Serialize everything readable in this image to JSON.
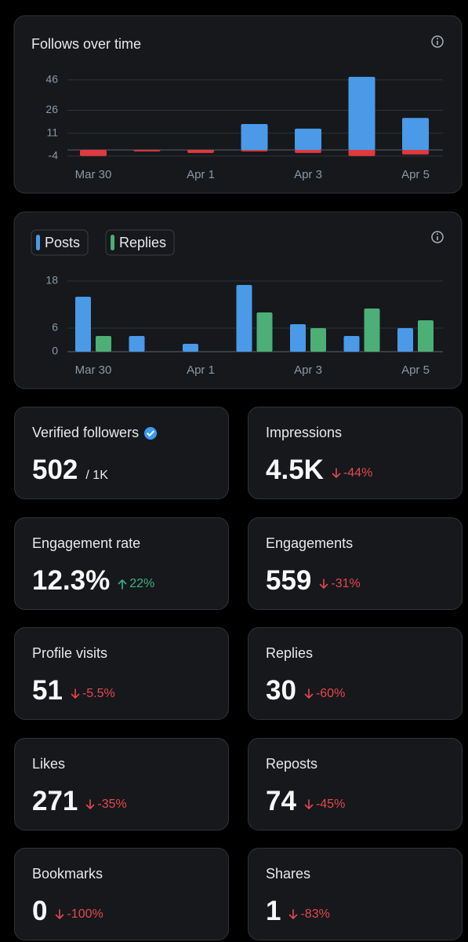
{
  "chart_data": [
    {
      "type": "bar",
      "title": "Follows over time",
      "categories": [
        "Mar 30",
        null,
        "Apr 1",
        null,
        "Apr 3",
        null,
        "Apr 5"
      ],
      "series": [
        {
          "color": "#4a9ae8",
          "values": [
            0,
            0,
            0,
            17,
            14,
            48,
            21
          ]
        },
        {
          "color": "#e0393e",
          "values": [
            -4,
            -1,
            -2,
            -1,
            -2,
            -4,
            -3
          ]
        }
      ],
      "ylim": [
        -6,
        50
      ],
      "yticks": [
        -4,
        11,
        26,
        46
      ],
      "grid": true,
      "layout": "overlap"
    },
    {
      "type": "bar",
      "categories": [
        "Mar 30",
        null,
        "Apr 1",
        null,
        "Apr 3",
        null,
        "Apr 5"
      ],
      "series": [
        {
          "name": "Posts",
          "color": "#4a9ae8",
          "values": [
            14,
            4,
            2,
            17,
            7,
            4,
            6
          ]
        },
        {
          "name": "Replies",
          "color": "#4caf75",
          "values": [
            4,
            0,
            0,
            10,
            6,
            11,
            8
          ]
        }
      ],
      "ylim": [
        0,
        18
      ],
      "yticks": [
        0,
        6,
        18
      ],
      "grid": true,
      "layout": "grouped",
      "legend": "top-left"
    }
  ],
  "stats": [
    {
      "label": "Verified followers",
      "value": "502",
      "suffix": "/ 1K",
      "verified": true
    },
    {
      "label": "Impressions",
      "value": "4.5K",
      "change": "-44%"
    },
    {
      "label": "Engagement rate",
      "value": "12.3%",
      "change": "22%"
    },
    {
      "label": "Engagements",
      "value": "559",
      "change": "-31%"
    },
    {
      "label": "Profile visits",
      "value": "51",
      "change": "-5.5%"
    },
    {
      "label": "Replies",
      "value": "30",
      "change": "-60%"
    },
    {
      "label": "Likes",
      "value": "271",
      "change": "-35%"
    },
    {
      "label": "Reposts",
      "value": "74",
      "change": "-45%"
    },
    {
      "label": "Bookmarks",
      "value": "0",
      "change": "-100%"
    },
    {
      "label": "Shares",
      "value": "1",
      "change": "-83%"
    }
  ]
}
